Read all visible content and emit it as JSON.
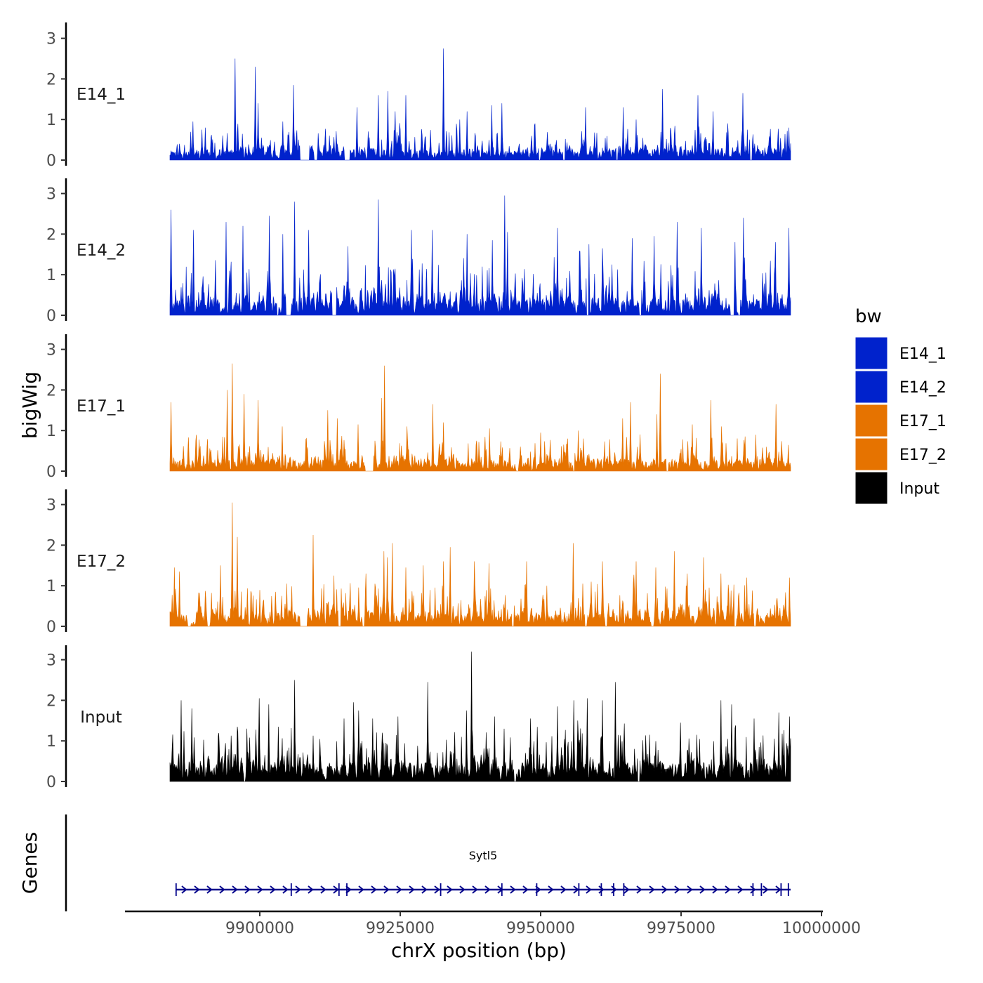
{
  "chart_data": {
    "type": "area",
    "ylabel": "bigWig",
    "xlabel": "chrX position (bp)",
    "genes_label": "Genes",
    "ylim": [
      0,
      3.4
    ],
    "y_ticks": [
      0,
      1,
      2,
      3
    ],
    "y_tick_labels": [
      "0",
      "1",
      "2",
      "3"
    ],
    "xlim": [
      9876000,
      10000000
    ],
    "x_ticks": [
      9900000,
      9925000,
      9950000,
      9975000,
      10000000
    ],
    "x_tick_labels": [
      "9900000",
      "9925000",
      "9950000",
      "9975000",
      "10000000"
    ],
    "data_range": [
      9884000,
      9994500
    ],
    "tracks": [
      {
        "name": "E14_1",
        "color": "#0022CC",
        "gaps": [
          [
            9907200,
            9908800
          ],
          [
            9909700,
            9910200
          ],
          [
            9915100,
            9916000
          ],
          [
            9954000,
            9954300
          ],
          [
            9949700,
            9949900
          ],
          [
            9963500,
            9963700
          ],
          [
            9987300,
            9987600
          ]
        ],
        "peaks": [
          [
            9895600,
            2.5
          ],
          [
            9899200,
            2.3
          ],
          [
            9906000,
            1.85
          ],
          [
            9899700,
            1.4
          ],
          [
            9904100,
            0.95
          ],
          [
            9912400,
            0.6
          ],
          [
            9915600,
            1.1
          ],
          [
            9917300,
            1.3
          ],
          [
            9921100,
            1.6
          ],
          [
            9922800,
            1.7
          ],
          [
            9924100,
            1.2
          ],
          [
            9926000,
            1.6
          ],
          [
            9932700,
            2.75
          ],
          [
            9935600,
            1.0
          ],
          [
            9936900,
            1.2
          ],
          [
            9941300,
            1.35
          ],
          [
            9943100,
            1.4
          ],
          [
            9949000,
            0.9
          ],
          [
            9954300,
            1.3
          ],
          [
            9958000,
            1.3
          ],
          [
            9963600,
            1.2
          ],
          [
            9964700,
            1.3
          ],
          [
            9967000,
            1.0
          ],
          [
            9971700,
            1.75
          ],
          [
            9978000,
            1.6
          ],
          [
            9980700,
            1.2
          ],
          [
            9986000,
            1.65
          ],
          [
            9994200,
            0.8
          ],
          [
            9888100,
            0.95
          ],
          [
            9890300,
            0.8
          ]
        ],
        "baseline": 0.28,
        "noise": 0.55,
        "seed": 11
      },
      {
        "name": "E14_2",
        "color": "#0022CC",
        "gaps": [
          [
            9903100,
            9903300
          ],
          [
            9904700,
            9905500
          ],
          [
            9912900,
            9913600
          ],
          [
            9958200,
            9958500
          ],
          [
            9967600,
            9967900
          ],
          [
            9983800,
            9984400
          ],
          [
            9985200,
            9985500
          ]
        ],
        "peaks": [
          [
            9884200,
            2.6
          ],
          [
            9888200,
            2.1
          ],
          [
            9894000,
            2.3
          ],
          [
            9897000,
            2.2
          ],
          [
            9901700,
            2.45
          ],
          [
            9904100,
            2.0
          ],
          [
            9906200,
            2.8
          ],
          [
            9908700,
            2.1
          ],
          [
            9915700,
            1.7
          ],
          [
            9921100,
            2.85
          ],
          [
            9927000,
            2.1
          ],
          [
            9930700,
            2.1
          ],
          [
            9936900,
            2.0
          ],
          [
            9941400,
            1.85
          ],
          [
            9943600,
            2.95
          ],
          [
            9944100,
            2.05
          ],
          [
            9953000,
            2.15
          ],
          [
            9958600,
            1.75
          ],
          [
            9961000,
            1.65
          ],
          [
            9966300,
            1.9
          ],
          [
            9970200,
            1.95
          ],
          [
            9974300,
            2.3
          ],
          [
            9978600,
            2.15
          ],
          [
            9984600,
            1.8
          ],
          [
            9986100,
            2.4
          ],
          [
            9991800,
            1.8
          ],
          [
            9994200,
            2.15
          ],
          [
            9880100,
            0.0
          ]
        ],
        "baseline": 0.45,
        "noise": 0.9,
        "seed": 23
      },
      {
        "name": "E17_1",
        "color": "#E67300",
        "gaps": [
          [
            9918800,
            9920200
          ],
          [
            9945700,
            9946000
          ],
          [
            9955800,
            9956000
          ],
          [
            9972400,
            9972700
          ]
        ],
        "peaks": [
          [
            9884200,
            1.7
          ],
          [
            9895100,
            2.65
          ],
          [
            9894200,
            2.0
          ],
          [
            9897200,
            1.9
          ],
          [
            9899700,
            1.75
          ],
          [
            9904000,
            1.1
          ],
          [
            9912100,
            1.5
          ],
          [
            9913800,
            1.3
          ],
          [
            9917500,
            1.15
          ],
          [
            9921700,
            1.8
          ],
          [
            9922200,
            2.6
          ],
          [
            9926200,
            1.1
          ],
          [
            9930800,
            1.65
          ],
          [
            9932700,
            1.2
          ],
          [
            9940900,
            1.05
          ],
          [
            9950000,
            0.95
          ],
          [
            9956700,
            1.0
          ],
          [
            9964600,
            1.3
          ],
          [
            9966000,
            1.7
          ],
          [
            9970700,
            1.4
          ],
          [
            9971300,
            2.4
          ],
          [
            9977000,
            1.15
          ],
          [
            9980300,
            1.75
          ],
          [
            9982200,
            1.1
          ],
          [
            9991900,
            1.65
          ],
          [
            9988300,
            0.9
          ]
        ],
        "baseline": 0.3,
        "noise": 0.55,
        "seed": 37
      },
      {
        "name": "E17_2",
        "color": "#E67300",
        "gaps": [
          [
            9887200,
            9887700
          ],
          [
            9890700,
            9891100
          ],
          [
            9907200,
            9908400
          ],
          [
            9914000,
            9914400
          ],
          [
            9918300,
            9918600
          ],
          [
            9944900,
            9945200
          ],
          [
            9957900,
            9958200
          ],
          [
            9961500,
            9961800
          ],
          [
            9969700,
            9970100
          ],
          [
            9984500,
            9984800
          ],
          [
            9988000,
            9988300
          ]
        ],
        "peaks": [
          [
            9884800,
            1.45
          ],
          [
            9885700,
            1.35
          ],
          [
            9895100,
            3.05
          ],
          [
            9896000,
            2.2
          ],
          [
            9893000,
            1.5
          ],
          [
            9904800,
            1.05
          ],
          [
            9909500,
            2.25
          ],
          [
            9913200,
            1.25
          ],
          [
            9918900,
            1.3
          ],
          [
            9922100,
            1.85
          ],
          [
            9922700,
            1.7
          ],
          [
            9923600,
            2.05
          ],
          [
            9926000,
            1.45
          ],
          [
            9929100,
            1.5
          ],
          [
            9932700,
            1.6
          ],
          [
            9933900,
            1.95
          ],
          [
            9938200,
            1.6
          ],
          [
            9940800,
            1.55
          ],
          [
            9947500,
            1.6
          ],
          [
            9951100,
            1.0
          ],
          [
            9955800,
            2.05
          ],
          [
            9957500,
            1.05
          ],
          [
            9961000,
            1.6
          ],
          [
            9967000,
            1.6
          ],
          [
            9970500,
            1.45
          ],
          [
            9973800,
            1.85
          ],
          [
            9976100,
            1.3
          ],
          [
            9979000,
            1.7
          ],
          [
            9982100,
            1.3
          ],
          [
            9986700,
            1.2
          ],
          [
            9994300,
            1.2
          ]
        ],
        "baseline": 0.35,
        "noise": 0.7,
        "seed": 51
      },
      {
        "name": "Input",
        "color": "#000000",
        "gaps": [
          [
            9897200,
            9897400
          ],
          [
            9945300,
            9945600
          ],
          [
            9967300,
            9967600
          ]
        ],
        "peaks": [
          [
            9886000,
            2.0
          ],
          [
            9887900,
            1.8
          ],
          [
            9896000,
            1.35
          ],
          [
            9899900,
            2.05
          ],
          [
            9901600,
            1.9
          ],
          [
            9903300,
            1.35
          ],
          [
            9906200,
            2.5
          ],
          [
            9915000,
            1.55
          ],
          [
            9916700,
            1.95
          ],
          [
            9917600,
            1.75
          ],
          [
            9920100,
            1.55
          ],
          [
            9924600,
            1.6
          ],
          [
            9929900,
            2.45
          ],
          [
            9936800,
            1.75
          ],
          [
            9937700,
            3.2
          ],
          [
            9941800,
            1.6
          ],
          [
            9943500,
            1.3
          ],
          [
            9948200,
            1.55
          ],
          [
            9953000,
            1.85
          ],
          [
            9955900,
            2.0
          ],
          [
            9958300,
            2.05
          ],
          [
            9961000,
            2.0
          ],
          [
            9963300,
            2.45
          ],
          [
            9969400,
            1.15
          ],
          [
            9974900,
            1.45
          ],
          [
            9977800,
            1.15
          ],
          [
            9982100,
            2.0
          ],
          [
            9984000,
            1.9
          ],
          [
            9988000,
            1.55
          ],
          [
            9992400,
            1.7
          ],
          [
            9994300,
            1.6
          ]
        ],
        "baseline": 0.5,
        "noise": 0.85,
        "seed": 73
      }
    ],
    "legend": {
      "title": "bw",
      "position": "right",
      "entries": [
        {
          "label": "E14_1",
          "color": "#0022CC"
        },
        {
          "label": "E14_2",
          "color": "#0022CC"
        },
        {
          "label": "E17_1",
          "color": "#E67300"
        },
        {
          "label": "E17_2",
          "color": "#E67300"
        },
        {
          "label": "Input",
          "color": "#000000"
        }
      ]
    },
    "gene": {
      "name": "Sytl5",
      "color": "#00008B",
      "start": 9885000,
      "end": 9994500,
      "strand": "+",
      "exons": [
        9885100,
        9905600,
        9914100,
        9915500,
        9932200,
        9943100,
        9949300,
        9956800,
        9960800,
        9963000,
        9964800,
        9987800,
        9989300,
        9992800,
        9994100
      ]
    }
  }
}
